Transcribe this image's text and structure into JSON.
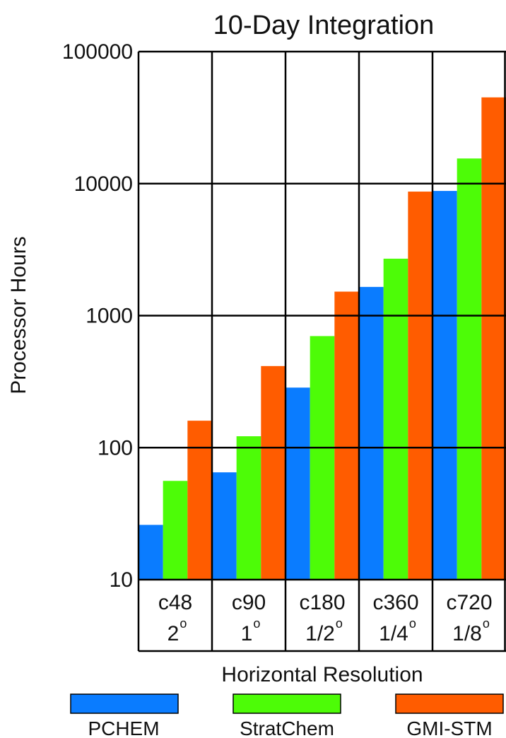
{
  "chart_data": {
    "type": "bar",
    "title": "10-Day Integration",
    "ylabel": "Processor Hours",
    "xlabel": "Horizontal Resolution",
    "yscale": "log",
    "ylim": [
      10,
      100000
    ],
    "grid": true,
    "legend_position": "bottom",
    "yticks": [
      "100000",
      "10000",
      "1000",
      "100",
      "10"
    ],
    "categories": [
      {
        "name": "c48",
        "res": "2",
        "deg": "o"
      },
      {
        "name": "c90",
        "res": "1",
        "deg": "o"
      },
      {
        "name": "c180",
        "res": "1/2",
        "deg": "o"
      },
      {
        "name": "c360",
        "res": "1/4",
        "deg": "o"
      },
      {
        "name": "c720",
        "res": "1/8",
        "deg": "o"
      }
    ],
    "series": [
      {
        "name": "PCHEM",
        "color": "#0a7cff",
        "values": [
          26,
          65,
          285,
          1650,
          8800
        ]
      },
      {
        "name": "StratChem",
        "color": "#4dfc07",
        "values": [
          56,
          122,
          700,
          2700,
          15500
        ]
      },
      {
        "name": "GMI-STM",
        "color": "#ff5c00",
        "values": [
          160,
          415,
          1520,
          8700,
          45000
        ]
      }
    ]
  }
}
